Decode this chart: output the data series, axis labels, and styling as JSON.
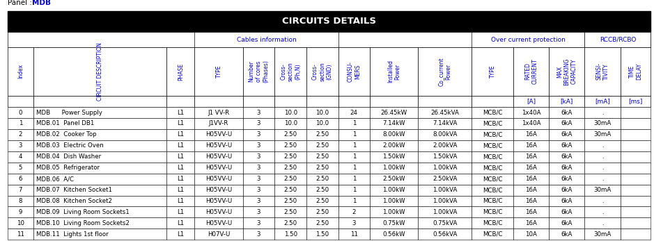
{
  "panel_label": "Panel : ",
  "panel_value": "MDB",
  "title": "CIRCUITS DETAILS",
  "title_bg": "#000000",
  "title_fg": "#ffffff",
  "border_color": "#000000",
  "data_color": "#000000",
  "subheader_color": "#0000cd",
  "unit_row": [
    "",
    "",
    "",
    "",
    "",
    "",
    "",
    "",
    "",
    "",
    "",
    "[A]",
    "[kA]",
    "[mA]",
    "[ms]"
  ],
  "header_texts": [
    "Index",
    "CIRCUIT DESCRIPTION",
    "PHASE",
    "TYPE",
    "Number\nof cores\n(Phases)",
    "Cross-\nsection\n(Ph,N)",
    "Cross-\nsection\n(GND)",
    "CONSU-\nMERS",
    "Installed\nPower",
    "Co_current\nPower",
    "TYPE",
    "RATED\nCURRENT",
    "MAX\nBREAKING\nCAPACITY",
    "SENSI-\nTIVITY",
    "TIME\nDELAY"
  ],
  "rows": [
    [
      "0",
      "MDB      Power Supply",
      "L1",
      "J1 VV-R",
      "3",
      "10.0",
      "10.0",
      "24",
      "26.45kW",
      "26.45kVA",
      "MCB/C",
      "1x40A",
      "6kA",
      ".",
      ""
    ],
    [
      "1",
      "MDB.01  Panel DB1",
      "L1",
      "J1VV-R",
      "3",
      "10.0",
      "10.0",
      "1",
      "7.14kW",
      "7.14kVA",
      "MCB/C",
      "1x40A",
      "6kA",
      "30mA",
      ""
    ],
    [
      "2",
      "MDB.02  Cooker Top",
      "L1",
      "H05VV-U",
      "3",
      "2.50",
      "2.50",
      "1",
      "8.00kW",
      "8.00kVA",
      "MCB/C",
      "16A",
      "6kA",
      "30mA",
      ""
    ],
    [
      "3",
      "MDB.03  Electric Oven",
      "L1",
      "H05VV-U",
      "3",
      "2.50",
      "2.50",
      "1",
      "2.00kW",
      "2.00kVA",
      "MCB/C",
      "16A",
      "6kA",
      ".",
      ""
    ],
    [
      "4",
      "MDB.04  Dish Washer",
      "L1",
      "H05VV-U",
      "3",
      "2.50",
      "2.50",
      "1",
      "1.50kW",
      "1.50kVA",
      "MCB/C",
      "16A",
      "6kA",
      ".",
      ""
    ],
    [
      "5",
      "MDB.05  Refrigerator",
      "L1",
      "H05VV-U",
      "3",
      "2.50",
      "2.50",
      "1",
      "1.00kW",
      "1.00kVA",
      "MCB/C",
      "16A",
      "6kA",
      ".",
      ""
    ],
    [
      "6",
      "MDB.06  A/C",
      "L1",
      "H05VV-U",
      "3",
      "2.50",
      "2.50",
      "1",
      "2.50kW",
      "2.50kVA",
      "MCB/C",
      "16A",
      "6kA",
      ".",
      ""
    ],
    [
      "7",
      "MDB.07  Kitchen Socket1",
      "L1",
      "H05VV-U",
      "3",
      "2.50",
      "2.50",
      "1",
      "1.00kW",
      "1.00kVA",
      "MCB/C",
      "16A",
      "6kA",
      "30mA",
      ""
    ],
    [
      "8",
      "MDB.08  Kitchen Socket2",
      "L1",
      "H05VV-U",
      "3",
      "2.50",
      "2.50",
      "1",
      "1.00kW",
      "1.00kVA",
      "MCB/C",
      "16A",
      "6kA",
      ".",
      ""
    ],
    [
      "9",
      "MDB.09  Living Room Sockets1",
      "L1",
      "H05VV-U",
      "3",
      "2.50",
      "2.50",
      "2",
      "1.00kW",
      "1.00kVA",
      "MCB/C",
      "16A",
      "6kA",
      ".",
      ""
    ],
    [
      "10",
      "MDB.10  Living Room Sockets2",
      "L1",
      "H05VV-U",
      "3",
      "2.50",
      "2.50",
      "3",
      "0.75kW",
      "0.75kVA",
      "MCB/C",
      "16A",
      "6kA",
      ".",
      ""
    ],
    [
      "11",
      "MDB.11  Lights 1st floor",
      "L1",
      "H07V-U",
      "3",
      "1.50",
      "1.50",
      "11",
      "0.56kW",
      "0.56kVA",
      "MCB/C",
      "10A",
      "6kA",
      "30mA",
      ""
    ]
  ],
  "col_widths_rel": [
    2.0,
    10.5,
    2.2,
    3.8,
    2.5,
    2.5,
    2.5,
    2.5,
    3.8,
    4.2,
    3.3,
    2.8,
    2.8,
    2.8,
    2.4
  ],
  "figsize": [
    9.39,
    3.47
  ],
  "dpi": 100
}
